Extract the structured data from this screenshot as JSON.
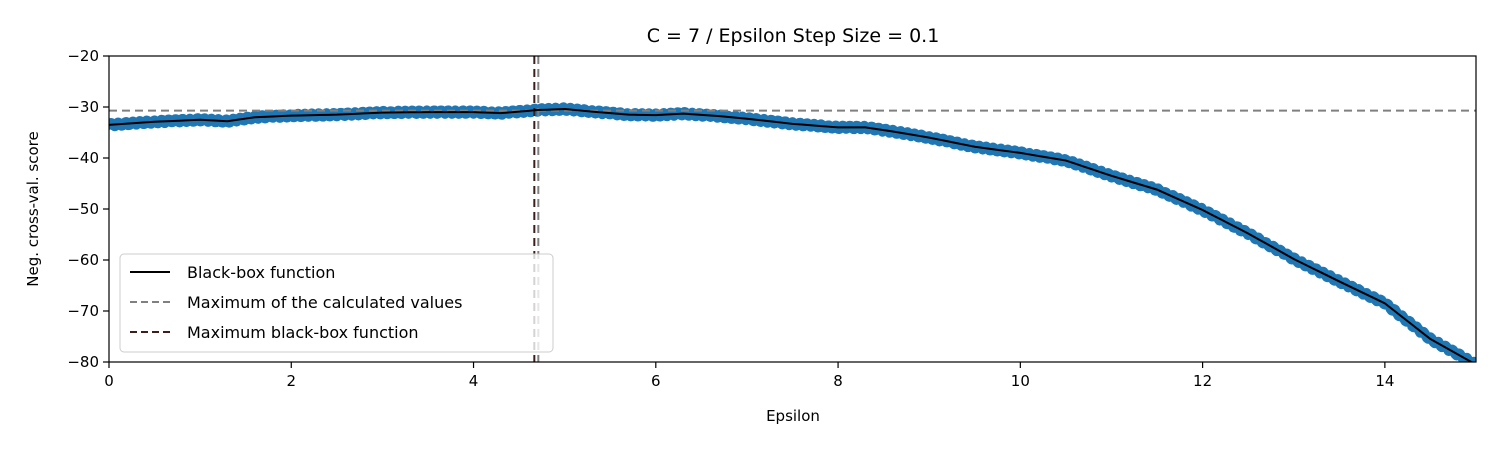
{
  "chart_data": {
    "type": "line",
    "title": "C = 7 / Epsilon Step Size = 0.1",
    "xlabel": "Epsilon",
    "ylabel": "Neg. cross-val. score",
    "xlim": [
      0,
      15
    ],
    "ylim": [
      -80,
      -20
    ],
    "xticks": [
      0,
      2,
      4,
      6,
      8,
      10,
      12,
      14
    ],
    "yticks": [
      -20,
      -30,
      -40,
      -50,
      -60,
      -70,
      -80
    ],
    "xtick_labels": [
      "0",
      "2",
      "4",
      "6",
      "8",
      "10",
      "12",
      "14"
    ],
    "ytick_labels": [
      "−20",
      "−30",
      "−40",
      "−50",
      "−60",
      "−70",
      "−80"
    ],
    "grid": false,
    "legend_position": "lower-left",
    "x_step": 0.1,
    "curve_knots": [
      [
        0.0,
        -33.5
      ],
      [
        0.5,
        -32.9
      ],
      [
        1.0,
        -32.5
      ],
      [
        1.3,
        -32.8
      ],
      [
        1.6,
        -32.0
      ],
      [
        2.0,
        -31.7
      ],
      [
        2.5,
        -31.5
      ],
      [
        3.0,
        -31.1
      ],
      [
        3.5,
        -31.0
      ],
      [
        4.0,
        -31.0
      ],
      [
        4.3,
        -31.2
      ],
      [
        4.7,
        -30.6
      ],
      [
        5.0,
        -30.4
      ],
      [
        5.3,
        -30.9
      ],
      [
        5.7,
        -31.5
      ],
      [
        6.0,
        -31.6
      ],
      [
        6.3,
        -31.3
      ],
      [
        6.7,
        -31.8
      ],
      [
        7.0,
        -32.3
      ],
      [
        7.5,
        -33.3
      ],
      [
        8.0,
        -34.0
      ],
      [
        8.3,
        -34.0
      ],
      [
        8.6,
        -34.8
      ],
      [
        9.0,
        -36.0
      ],
      [
        9.5,
        -37.8
      ],
      [
        10.0,
        -39.0
      ],
      [
        10.5,
        -40.5
      ],
      [
        11.0,
        -43.5
      ],
      [
        11.5,
        -46.2
      ],
      [
        12.0,
        -50.2
      ],
      [
        12.5,
        -54.8
      ],
      [
        13.0,
        -59.8
      ],
      [
        13.5,
        -64.2
      ],
      [
        14.0,
        -68.5
      ],
      [
        14.5,
        -75.5
      ],
      [
        15.0,
        -80.5
      ]
    ],
    "max_calculated_value": -30.7,
    "max_black_box_epsilon": 4.7,
    "series": [
      {
        "name": "Black-box function",
        "color": "#000000",
        "style": "solid"
      },
      {
        "name": "Maximum of the calculated values",
        "color": "#808080",
        "style": "dashed"
      },
      {
        "name": "Maximum black-box function",
        "color": "#3b1f1f",
        "style": "dashed"
      },
      {
        "color": "#1f77b4",
        "style": "markers"
      }
    ]
  }
}
